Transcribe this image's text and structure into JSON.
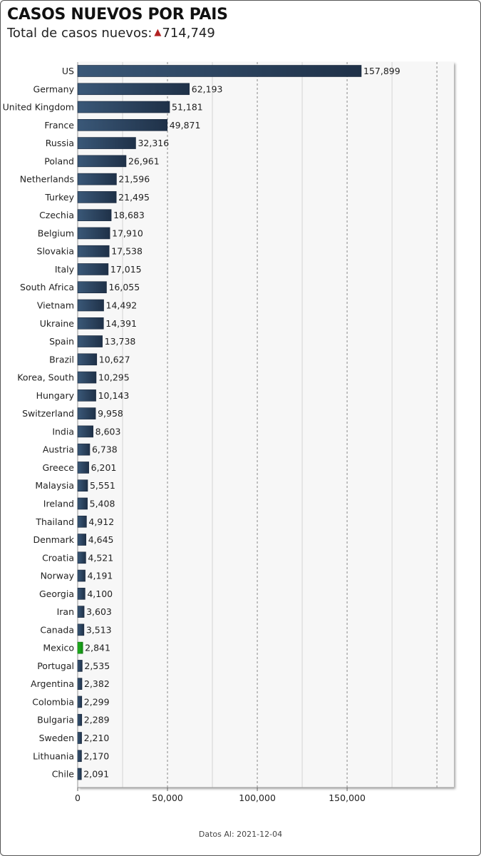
{
  "header": {
    "title": "CASOS NUEVOS POR PAIS",
    "subtitle_label": "Total de casos nuevos:",
    "subtitle_value": "714,749"
  },
  "footer": {
    "label": "Datos Al:",
    "date": "2021-12-04"
  },
  "colors": {
    "bar": "#2e4560",
    "highlight": "#1aa01a",
    "plot_bg": "#f7f7f7"
  },
  "chart_data": {
    "type": "bar",
    "orientation": "horizontal",
    "title": "CASOS NUEVOS POR PAIS",
    "xlim": [
      0,
      210000
    ],
    "x_ticks": [
      0,
      50000,
      100000,
      150000
    ],
    "x_tick_labels": [
      "0",
      "50,000",
      "100,000",
      "150,000"
    ],
    "grid": true,
    "highlight_category": "Mexico",
    "categories": [
      "US",
      "Germany",
      "United Kingdom",
      "France",
      "Russia",
      "Poland",
      "Netherlands",
      "Turkey",
      "Czechia",
      "Belgium",
      "Slovakia",
      "Italy",
      "South Africa",
      "Vietnam",
      "Ukraine",
      "Spain",
      "Brazil",
      "Korea, South",
      "Hungary",
      "Switzerland",
      "India",
      "Austria",
      "Greece",
      "Malaysia",
      "Ireland",
      "Thailand",
      "Denmark",
      "Croatia",
      "Norway",
      "Georgia",
      "Iran",
      "Canada",
      "Mexico",
      "Portugal",
      "Argentina",
      "Colombia",
      "Bulgaria",
      "Sweden",
      "Lithuania",
      "Chile"
    ],
    "values": [
      157899,
      62193,
      51181,
      49871,
      32316,
      26961,
      21596,
      21495,
      18683,
      17910,
      17538,
      17015,
      16055,
      14492,
      14391,
      13738,
      10627,
      10295,
      10143,
      9958,
      8603,
      6738,
      6201,
      5551,
      5408,
      4912,
      4645,
      4521,
      4191,
      4100,
      3603,
      3513,
      2841,
      2535,
      2382,
      2299,
      2289,
      2210,
      2170,
      2091
    ],
    "value_labels": [
      "157,899",
      "62,193",
      "51,181",
      "49,871",
      "32,316",
      "26,961",
      "21,596",
      "21,495",
      "18,683",
      "17,910",
      "17,538",
      "17,015",
      "16,055",
      "14,492",
      "14,391",
      "13,738",
      "10,627",
      "10,295",
      "10,143",
      "9,958",
      "8,603",
      "6,738",
      "6,201",
      "5,551",
      "5,408",
      "4,912",
      "4,645",
      "4,521",
      "4,191",
      "4,100",
      "3,603",
      "3,513",
      "2,841",
      "2,535",
      "2,382",
      "2,299",
      "2,289",
      "2,210",
      "2,170",
      "2,091"
    ]
  }
}
